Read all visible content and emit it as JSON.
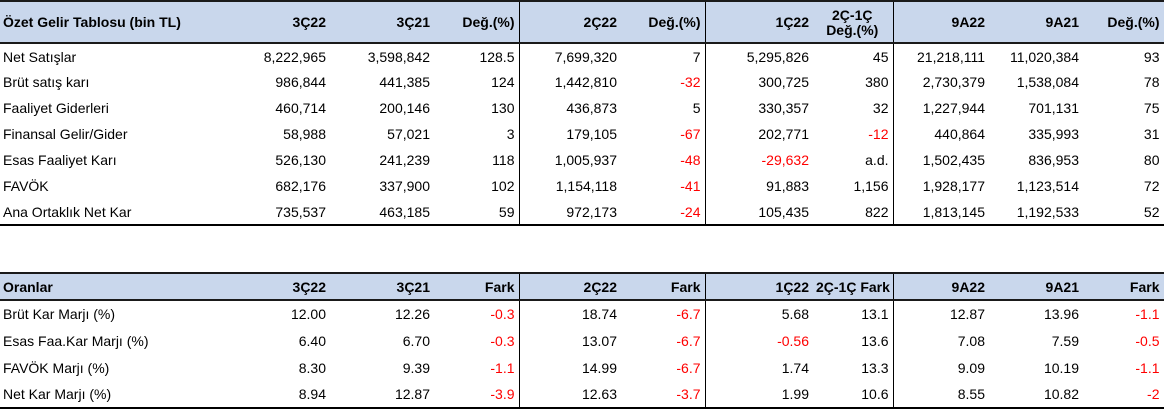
{
  "income": {
    "headers": [
      "Özet Gelir Tablosu (bin TL)",
      "3Ç22",
      "3Ç21",
      "Değ.(%)",
      "2Ç22",
      "Değ.(%)",
      "1Ç22",
      [
        "2Ç-1Ç",
        "Değ.(%)"
      ],
      "9A22",
      "9A21",
      "Değ.(%)"
    ],
    "rows": [
      {
        "label": "Net Satışlar",
        "cells": [
          "8,222,965",
          "3,598,842",
          "128.5",
          "7,699,320",
          "7",
          "5,295,826",
          "45",
          "21,218,111",
          "11,020,384",
          "93"
        ]
      },
      {
        "label": "Brüt satış karı",
        "cells": [
          "986,844",
          "441,385",
          "124",
          "1,442,810",
          "-32",
          "300,725",
          "380",
          "2,730,379",
          "1,538,084",
          "78"
        ]
      },
      {
        "label": "Faaliyet Giderleri",
        "cells": [
          "460,714",
          "200,146",
          "130",
          "436,873",
          "5",
          "330,357",
          "32",
          "1,227,944",
          "701,131",
          "75"
        ]
      },
      {
        "label": "Finansal Gelir/Gider",
        "cells": [
          "58,988",
          "57,021",
          "3",
          "179,105",
          "-67",
          "202,771",
          "-12",
          "440,864",
          "335,993",
          "31"
        ]
      },
      {
        "label": "Esas Faaliyet Karı",
        "cells": [
          "526,130",
          "241,239",
          "118",
          "1,005,937",
          "-48",
          "-29,632",
          "a.d.",
          "1,502,435",
          "836,953",
          "80"
        ]
      },
      {
        "label": "FAVÖK",
        "cells": [
          "682,176",
          "337,900",
          "102",
          "1,154,118",
          "-41",
          "91,883",
          "1,156",
          "1,928,177",
          "1,123,514",
          "72"
        ]
      },
      {
        "label": "Ana Ortaklık Net Kar",
        "cells": [
          "735,537",
          "463,185",
          "59",
          "972,173",
          "-24",
          "105,435",
          "822",
          "1,813,145",
          "1,192,533",
          "52"
        ]
      }
    ]
  },
  "ratios": {
    "headers": [
      "Oranlar",
      "3Ç22",
      "3Ç21",
      "Fark",
      "2Ç22",
      "Fark",
      "1Ç22",
      "2Ç-1Ç Fark",
      "9A22",
      "9A21",
      "Fark"
    ],
    "rows": [
      {
        "label": "Brüt Kar Marjı (%)",
        "cells": [
          "12.00",
          "12.26",
          "-0.3",
          "18.74",
          "-6.7",
          "5.68",
          "13.1",
          "12.87",
          "13.96",
          "-1.1"
        ]
      },
      {
        "label": "Esas Faa.Kar Marjı (%)",
        "cells": [
          "6.40",
          "6.70",
          "-0.3",
          "13.07",
          "-6.7",
          "-0.56",
          "13.6",
          "7.08",
          "7.59",
          "-0.5"
        ]
      },
      {
        "label": "FAVÖK Marjı (%)",
        "cells": [
          "8.30",
          "9.39",
          "-1.1",
          "14.99",
          "-6.7",
          "1.74",
          "13.3",
          "9.09",
          "10.19",
          "-1.1"
        ]
      },
      {
        "label": "Net Kar Marjı (%)",
        "cells": [
          "8.94",
          "12.87",
          "-3.9",
          "12.63",
          "-3.7",
          "1.99",
          "10.6",
          "8.55",
          "10.82",
          "-2"
        ]
      }
    ]
  }
}
